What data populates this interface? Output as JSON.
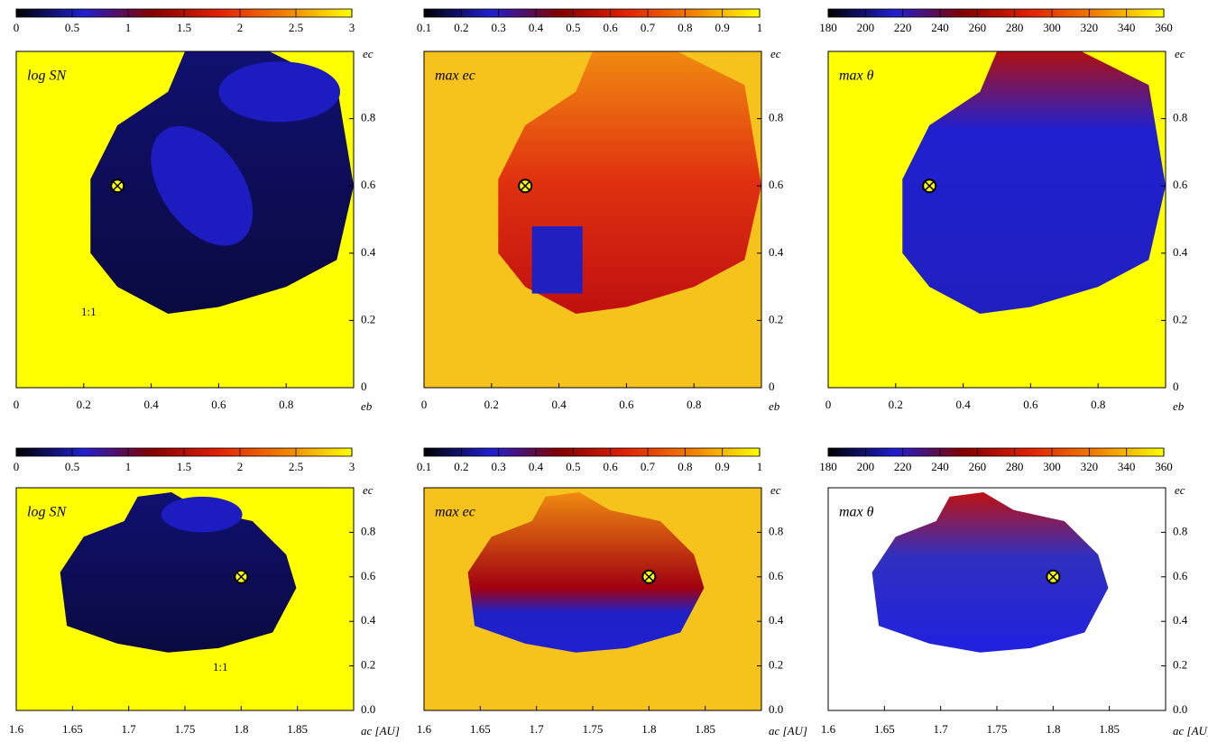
{
  "chart_data": [
    {
      "type": "heatmap",
      "title": "log SN",
      "annotation": "1:1",
      "xlabel": "eb",
      "ylabel": "ec",
      "background": "#ffff00",
      "colorbar": {
        "lim": [
          0,
          3
        ],
        "ticks": [
          0,
          0.5,
          1,
          1.5,
          2,
          2.5,
          3
        ],
        "colors": [
          "#000000",
          "#2020d0",
          "#800000",
          "#e02000",
          "#f08000",
          "#ffff00"
        ]
      },
      "xlim": [
        0,
        1
      ],
      "xticks": [
        0,
        0.2,
        0.4,
        0.6,
        0.8
      ],
      "ylim": [
        0,
        1
      ],
      "yticks": [
        0,
        0.2,
        0.4,
        0.6,
        0.8
      ],
      "marker": {
        "x": 0.3,
        "y": 0.6
      }
    },
    {
      "type": "heatmap",
      "title": "max ec",
      "xlabel": "eb",
      "ylabel": "ec",
      "background": "#f6c21c",
      "colorbar": {
        "lim": [
          0.1,
          1
        ],
        "ticks": [
          0.1,
          0.2,
          0.3,
          0.4,
          0.5,
          0.6,
          0.7,
          0.8,
          0.9,
          1
        ],
        "colors": [
          "#000000",
          "#2020d0",
          "#800000",
          "#e02000",
          "#f08000",
          "#ffff00"
        ]
      },
      "xlim": [
        0,
        1
      ],
      "xticks": [
        0,
        0.2,
        0.4,
        0.6,
        0.8
      ],
      "ylim": [
        0,
        1
      ],
      "yticks": [
        0,
        0.2,
        0.4,
        0.6,
        0.8
      ],
      "marker": {
        "x": 0.3,
        "y": 0.6
      }
    },
    {
      "type": "heatmap",
      "title": "max θ",
      "xlabel": "eb",
      "ylabel": "ec",
      "background": "#ffff00",
      "colorbar": {
        "lim": [
          180,
          360
        ],
        "ticks": [
          180,
          200,
          220,
          240,
          260,
          280,
          300,
          320,
          340,
          360
        ],
        "colors": [
          "#000000",
          "#2020d0",
          "#800000",
          "#e02000",
          "#f08000",
          "#ffff00"
        ]
      },
      "xlim": [
        0,
        1
      ],
      "xticks": [
        0,
        0.2,
        0.4,
        0.6,
        0.8
      ],
      "ylim": [
        0,
        1
      ],
      "yticks": [
        0,
        0.2,
        0.4,
        0.6,
        0.8
      ],
      "marker": {
        "x": 0.3,
        "y": 0.6
      }
    },
    {
      "type": "heatmap",
      "title": "log SN",
      "annotation": "1:1",
      "xlabel": "ac [AU]",
      "ylabel": "ec",
      "background": "#ffff00",
      "colorbar": {
        "lim": [
          0,
          3
        ],
        "ticks": [
          0,
          0.5,
          1,
          1.5,
          2,
          2.5,
          3
        ],
        "colors": [
          "#000000",
          "#2020d0",
          "#800000",
          "#e02000",
          "#f08000",
          "#ffff00"
        ]
      },
      "xlim": [
        1.6,
        1.9
      ],
      "xticks": [
        1.6,
        1.65,
        1.7,
        1.75,
        1.8,
        1.85
      ],
      "ylim": [
        0,
        1
      ],
      "yticks": [
        {
          "value": 0,
          "label": "0.0"
        },
        0.2,
        0.4,
        0.6,
        0.8
      ],
      "marker": {
        "x": 1.8,
        "y": 0.6
      }
    },
    {
      "type": "heatmap",
      "title": "max ec",
      "xlabel": "ac [AU]",
      "ylabel": "ec",
      "background": "#f6c21c",
      "colorbar": {
        "lim": [
          0.1,
          1
        ],
        "ticks": [
          0.1,
          0.2,
          0.3,
          0.4,
          0.5,
          0.6,
          0.7,
          0.8,
          0.9,
          1
        ],
        "colors": [
          "#000000",
          "#2020d0",
          "#800000",
          "#e02000",
          "#f08000",
          "#ffff00"
        ]
      },
      "xlim": [
        1.6,
        1.9
      ],
      "xticks": [
        1.6,
        1.65,
        1.7,
        1.75,
        1.8,
        1.85
      ],
      "ylim": [
        0,
        1
      ],
      "yticks": [
        {
          "value": 0,
          "label": "0.0"
        },
        0.2,
        0.4,
        0.6,
        0.8
      ],
      "marker": {
        "x": 1.8,
        "y": 0.6
      }
    },
    {
      "type": "heatmap",
      "title": "max θ",
      "xlabel": "ac [AU]",
      "ylabel": "ec",
      "background": "#ffffff",
      "colorbar": {
        "lim": [
          180,
          360
        ],
        "ticks": [
          180,
          200,
          220,
          240,
          260,
          280,
          300,
          320,
          340,
          360
        ],
        "colors": [
          "#000000",
          "#2020d0",
          "#800000",
          "#e02000",
          "#f08000",
          "#ffff00"
        ]
      },
      "xlim": [
        1.6,
        1.9
      ],
      "xticks": [
        1.6,
        1.65,
        1.7,
        1.75,
        1.8,
        1.85
      ],
      "ylim": [
        0,
        1
      ],
      "yticks": [
        {
          "value": 0,
          "label": "0.0"
        },
        0.2,
        0.4,
        0.6,
        0.8
      ],
      "marker": {
        "x": 1.8,
        "y": 0.6
      }
    }
  ]
}
